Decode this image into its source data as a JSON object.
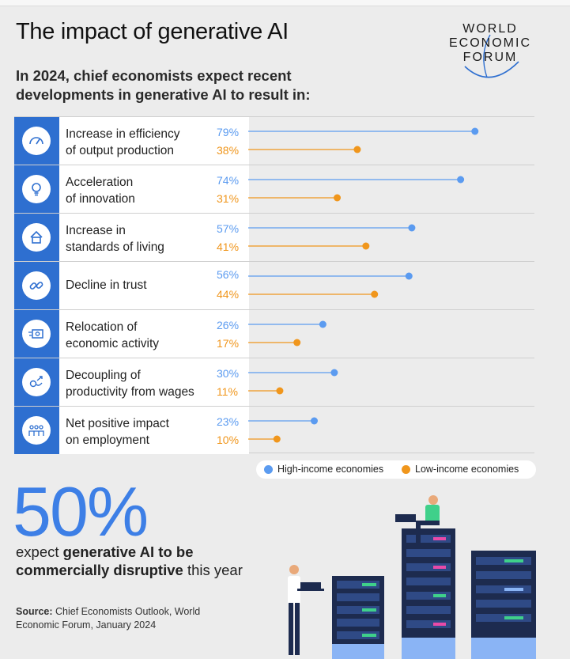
{
  "title": "The impact of generative AI",
  "logo": {
    "line1": "WORLD",
    "line2": "ECONOMIC",
    "line3": "FORUM"
  },
  "subtitle": "In 2024, chief economists expect recent developments in generative AI to result in:",
  "colors": {
    "high_income": "#5b9bf0",
    "low_income": "#f0961c",
    "icon_bg": "#2e6fd0",
    "big_stat": "#3d7fe6"
  },
  "chart_data": {
    "type": "scatter",
    "categories": [
      "Increase in efficiency of output production",
      "Acceleration of innovation",
      "Increase in standards of living",
      "Decline in trust",
      "Relocation of economic activity",
      "Decoupling of productivity from wages",
      "Net positive impact on employment"
    ],
    "series": [
      {
        "name": "High-income economies",
        "values": [
          79,
          74,
          57,
          56,
          26,
          30,
          23
        ]
      },
      {
        "name": "Low-income economies",
        "values": [
          38,
          31,
          41,
          44,
          17,
          11,
          10
        ]
      }
    ],
    "value_labels_high": [
      "79%",
      "74%",
      "57%",
      "56%",
      "26%",
      "30%",
      "23%"
    ],
    "value_labels_low": [
      "38%",
      "31%",
      "41%",
      "44%",
      "17%",
      "11%",
      "10%"
    ],
    "xlim": [
      0,
      100
    ],
    "legend": "bottom-right"
  },
  "rows": [
    {
      "line1": "Increase in efficiency",
      "line2": "of output production",
      "icon": "speedometer-icon"
    },
    {
      "line1": "Acceleration",
      "line2": "of innovation",
      "icon": "lightbulb-icon"
    },
    {
      "line1": "Increase in",
      "line2": "standards of living",
      "icon": "house-icon"
    },
    {
      "line1": "Decline in trust",
      "line2": "",
      "icon": "broken-link-icon"
    },
    {
      "line1": "Relocation of",
      "line2": "economic activity",
      "icon": "money-move-icon"
    },
    {
      "line1": "Decoupling of",
      "line2": "productivity from wages",
      "icon": "diverging-arrows-icon"
    },
    {
      "line1": "Net positive impact",
      "line2": "on employment",
      "icon": "people-icon"
    }
  ],
  "legend": {
    "high": "High-income economies",
    "low": "Low-income economies"
  },
  "big_stat": "50%",
  "expect": {
    "pre": "expect ",
    "bold": "generative AI to be commercially disruptive",
    "post": " this year"
  },
  "source": {
    "label": "Source:",
    "text": " Chief Economists Outlook, World Economic Forum, January 2024"
  }
}
